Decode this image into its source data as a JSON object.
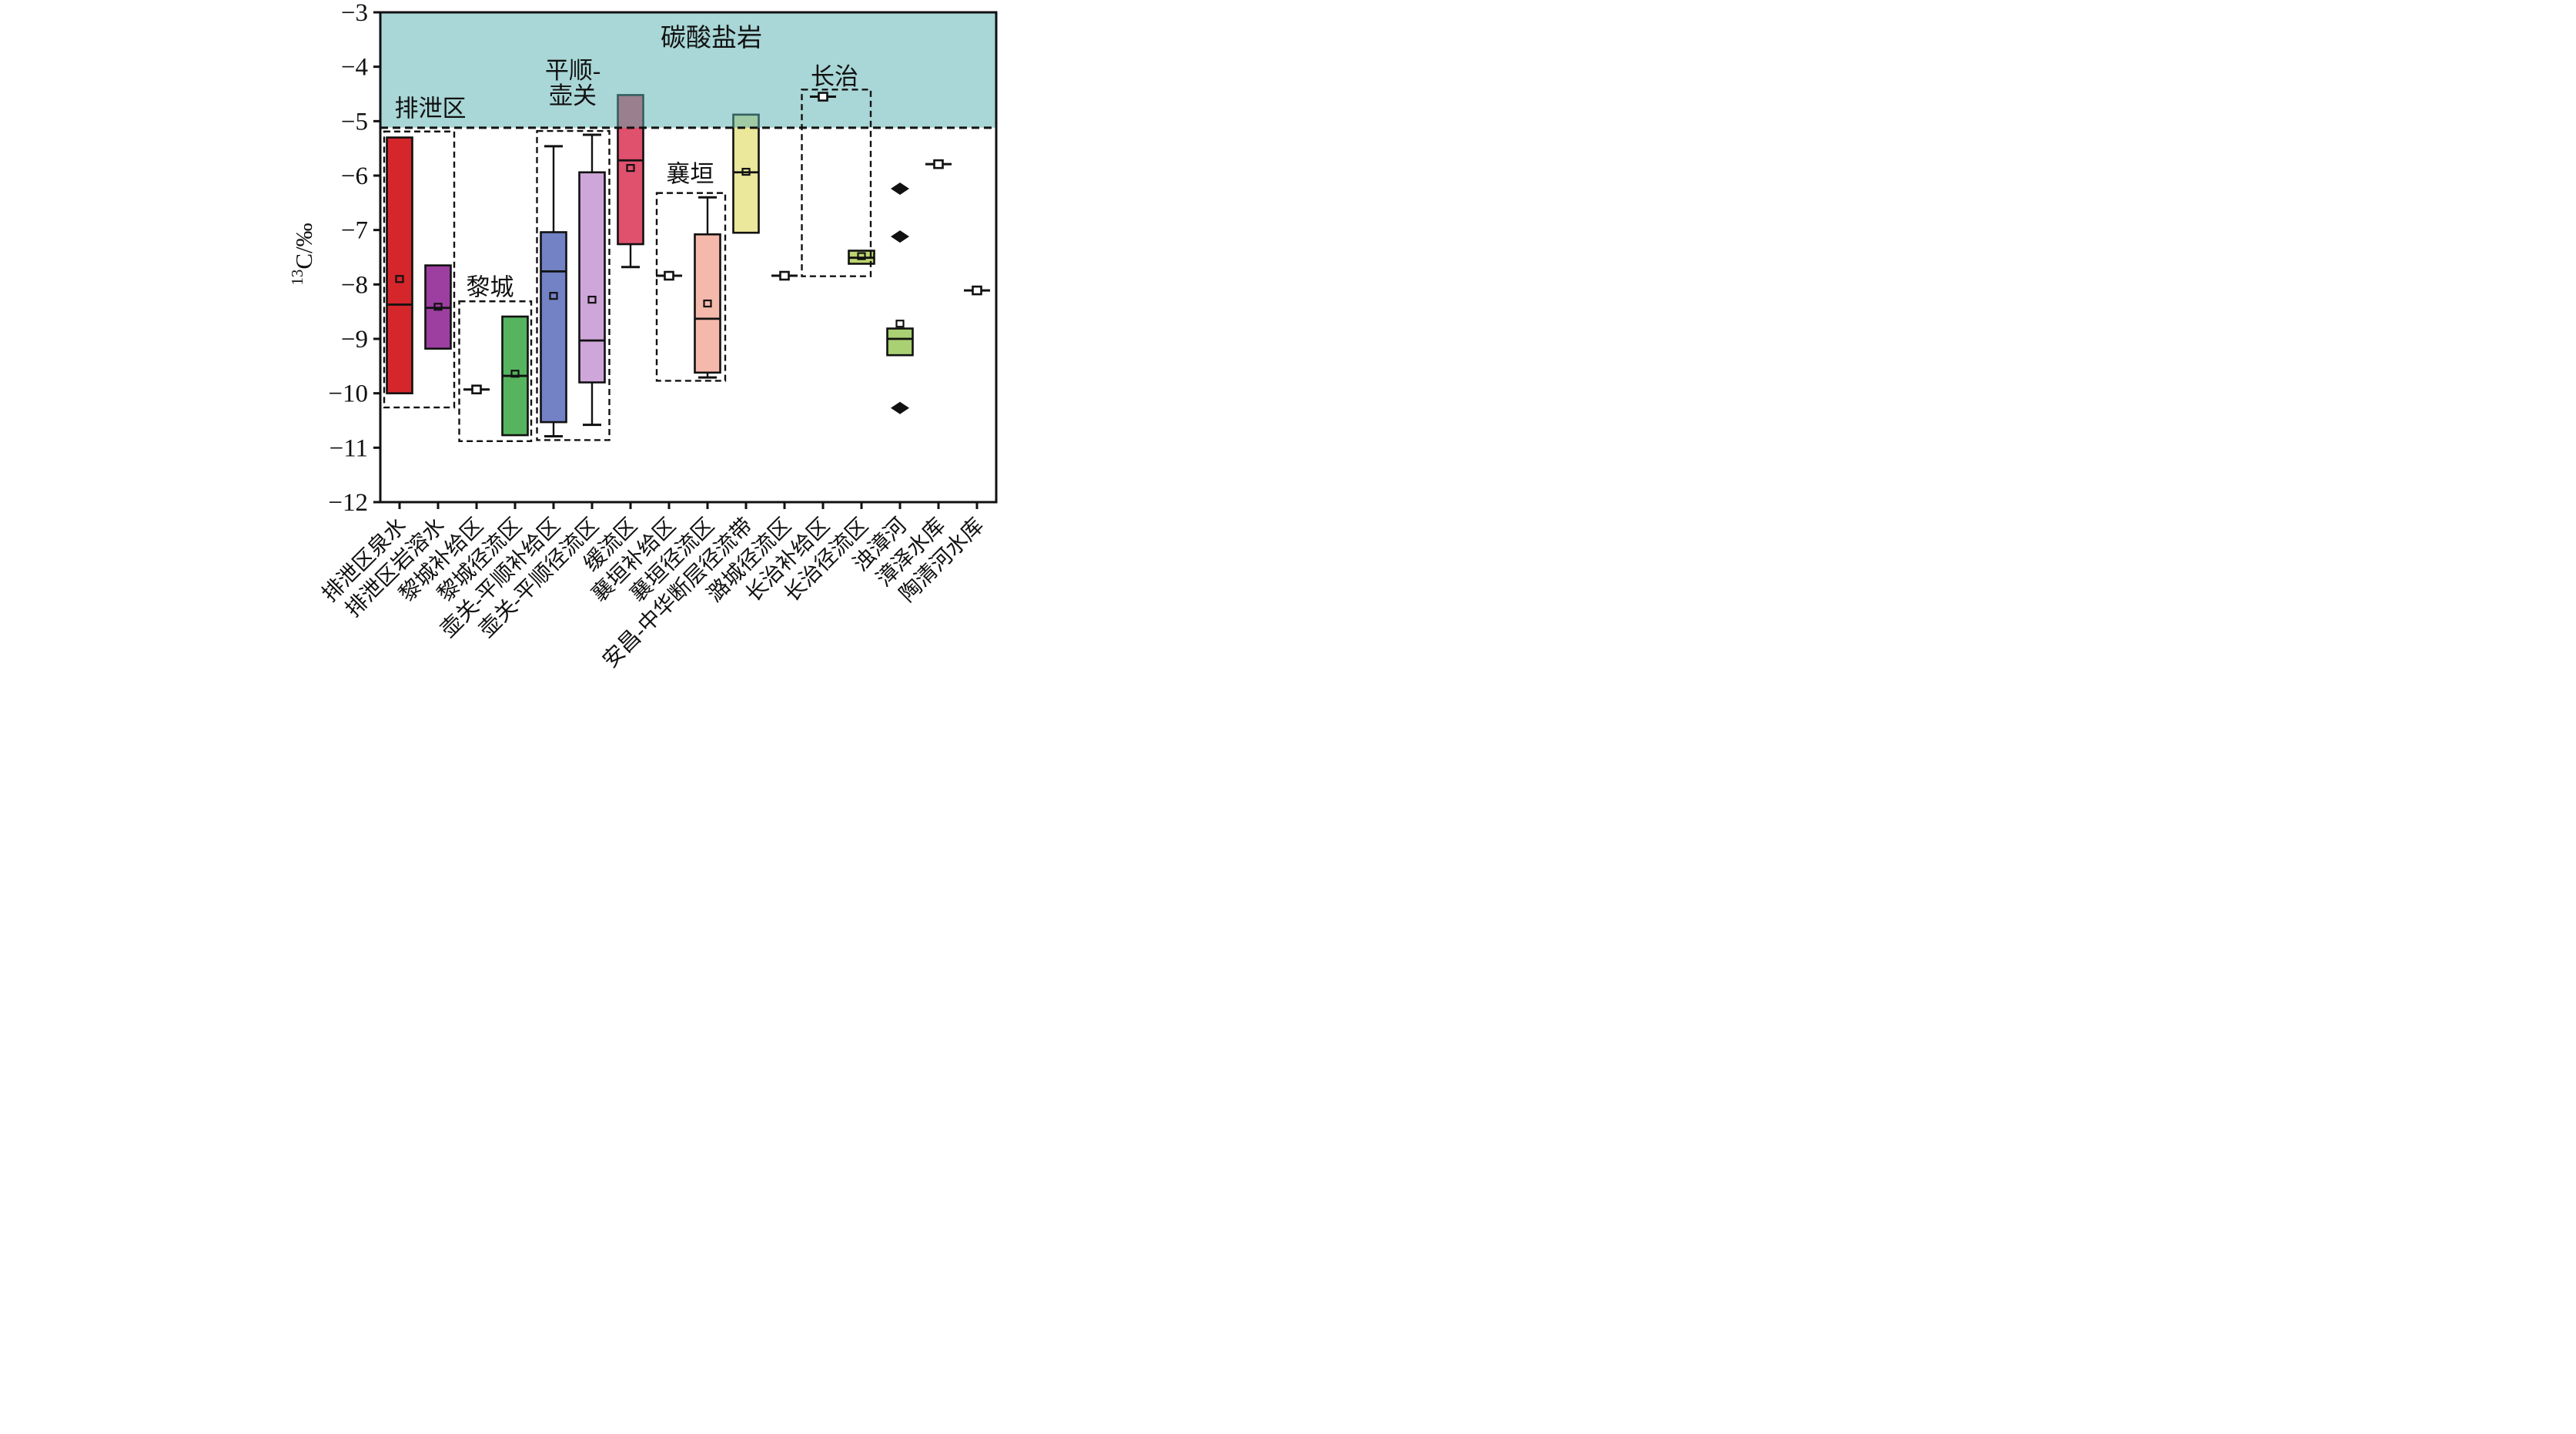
{
  "chart_data": {
    "type": "box",
    "ylabel": {
      "sup": "13",
      "main": "C/‰"
    },
    "ylim": [
      -12,
      -3
    ],
    "yticks": [
      -3,
      -4,
      -5,
      -6,
      -7,
      -8,
      -9,
      -10,
      -11,
      -12
    ],
    "grid": false,
    "carbonate_zone": {
      "label": "碳酸盐岩",
      "from": -3,
      "to": -5.12,
      "fill": "#53adad",
      "alpha": 0.5,
      "label_color": "#3cb54a",
      "label_x_cat": 8.6,
      "label_y_val": -3.62
    },
    "categories": [
      "排泄区泉水",
      "排泄区岩溶水",
      "黎城补给区",
      "黎城径流区",
      "壶关-平顺补给区",
      "壶关-平顺径流区",
      "缓流区",
      "襄垣补给区",
      "襄垣径流区",
      "安昌-中华断层径流带",
      "潞城径流区",
      "长治补给区",
      "长治径流区",
      "浊漳河",
      "漳泽水库",
      "陶清河水库"
    ],
    "boxes": [
      {
        "kind": "box",
        "color": "#d5262b",
        "q3": -5.3,
        "median": -8.37,
        "q1": -10.0,
        "mean": -7.9
      },
      {
        "kind": "box",
        "color": "#9c3fa0",
        "q3": -7.65,
        "median": -8.43,
        "q1": -9.18,
        "mean": -8.41
      },
      {
        "kind": "point",
        "value": -9.93
      },
      {
        "kind": "box",
        "color": "#56b45f",
        "q3": -8.59,
        "median": -9.68,
        "q1": -10.77,
        "mean": -9.64
      },
      {
        "kind": "box",
        "color": "#7381c5",
        "whisker_top": -5.46,
        "q3": -7.04,
        "median": -7.76,
        "mean": -8.21,
        "q1": -10.53,
        "whisker_bottom": -10.79
      },
      {
        "kind": "box",
        "color": "#cfa6d9",
        "whisker_top": -5.25,
        "q3": -5.94,
        "median": -9.03,
        "mean": -8.28,
        "q1": -9.8,
        "whisker_bottom": -10.58
      },
      {
        "kind": "box",
        "color": "#e0516e",
        "q3": -4.52,
        "median": -5.72,
        "mean": -5.86,
        "q1": -7.26,
        "whisker_bottom": -7.68
      },
      {
        "kind": "point",
        "value": -7.84
      },
      {
        "kind": "box",
        "color": "#f5b9ac",
        "whisker_top": -6.4,
        "q3": -7.08,
        "mean": -8.35,
        "median": -8.63,
        "q1": -9.62,
        "whisker_bottom": -9.71
      },
      {
        "kind": "box",
        "color": "#ebe79b",
        "q3": -4.88,
        "median": -5.94,
        "mean": -5.93,
        "q1": -7.05
      },
      {
        "kind": "point",
        "value": -7.84
      },
      {
        "kind": "point",
        "value": -4.55
      },
      {
        "kind": "box",
        "color": "#bdd56f",
        "q3": -7.38,
        "median": -7.51,
        "mean": -7.48,
        "q1": -7.62
      },
      {
        "kind": "box",
        "color": "#a9d072",
        "q3": -8.81,
        "median": -9.0,
        "q1": -9.3,
        "mean": -8.72,
        "outliers": [
          -6.24,
          -7.12,
          -10.27
        ]
      },
      {
        "kind": "point",
        "value": -5.79
      },
      {
        "kind": "point",
        "value": -8.11
      }
    ],
    "groups": [
      {
        "label": "排泄区",
        "x0_cat": 0.1,
        "x1_cat": 1.92,
        "top": -5.19,
        "bottom": -10.26,
        "label_x_cat": 1.3,
        "label_y_val": -4.92,
        "lines": [
          "排泄区"
        ]
      },
      {
        "label": "黎城",
        "x0_cat": 2.05,
        "x1_cat": 3.92,
        "top": -8.31,
        "bottom": -10.88,
        "label_x_cat": 2.85,
        "label_y_val": -8.2,
        "lines": [
          "黎城"
        ]
      },
      {
        "label": "平顺-壶关",
        "x0_cat": 4.07,
        "x1_cat": 5.95,
        "top": -5.18,
        "bottom": -10.86,
        "label_x_cat": 5.0,
        "label_y_val": -4.22,
        "lines": [
          "平顺-",
          "壶关"
        ]
      },
      {
        "label": "襄垣",
        "x0_cat": 7.18,
        "x1_cat": 8.96,
        "top": -6.32,
        "bottom": -9.77,
        "label_x_cat": 8.05,
        "label_y_val": -6.12,
        "lines": [
          "襄垣"
        ]
      },
      {
        "label": "长治",
        "x0_cat": 10.95,
        "x1_cat": 12.74,
        "top": -4.42,
        "bottom": -7.85,
        "label_x_cat": 11.8,
        "label_y_val": -4.33,
        "lines": [
          "长治"
        ]
      }
    ]
  }
}
